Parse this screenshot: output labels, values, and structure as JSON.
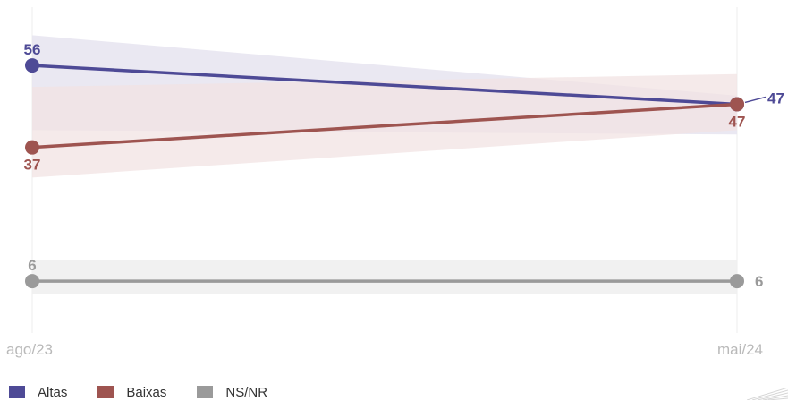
{
  "chart_data": {
    "type": "line",
    "x": [
      "ago/23",
      "mai/24"
    ],
    "series": [
      {
        "name": "Altas",
        "values": [
          56,
          47
        ],
        "band": [
          [
            63,
            41
          ],
          [
            49,
            40
          ]
        ],
        "color": "#4e4a96",
        "band_color": "#e6e4f0",
        "labels": [
          "56",
          "47"
        ],
        "label_side": [
          "above",
          "right"
        ]
      },
      {
        "name": "Baixas",
        "values": [
          37,
          47
        ],
        "band": [
          [
            51,
            30
          ],
          [
            54,
            41
          ]
        ],
        "color": "#9e5450",
        "band_color": "#f1e3e3",
        "labels": [
          "37",
          "47"
        ],
        "label_side": [
          "below",
          "below"
        ]
      },
      {
        "name": "NS/NR",
        "values": [
          6,
          6
        ],
        "band": [
          [
            11,
            3
          ],
          [
            11,
            3
          ]
        ],
        "color": "#9a9a9a",
        "band_color": "#efefef",
        "labels": [
          "6",
          "6"
        ],
        "label_side": [
          "above",
          "right"
        ]
      }
    ],
    "ylim": [
      0,
      70
    ],
    "grid": false,
    "legend_position": "bottom-left"
  }
}
